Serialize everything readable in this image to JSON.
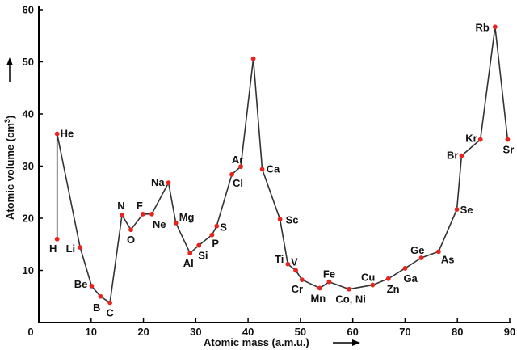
{
  "chart_data": {
    "type": "line",
    "xlabel": "Atomic mass (a.m.u.)",
    "ylabel": "Atomic volume (cm3)",
    "xlim": [
      0,
      90
    ],
    "ylim": [
      0,
      60
    ],
    "xticks": [
      0,
      10,
      20,
      30,
      40,
      50,
      60,
      70,
      80,
      90
    ],
    "yticks": [
      10,
      20,
      30,
      40,
      50,
      60
    ],
    "grid": false,
    "colors": {
      "line": "#333333",
      "marker": "#e8231c",
      "axis": "#000000"
    },
    "points": [
      {
        "x": 3.5,
        "y": 16.0,
        "label": "H"
      },
      {
        "x": 3.5,
        "y": 36.2,
        "label": "He"
      },
      {
        "x": 7.9,
        "y": 14.4,
        "label": "Li"
      },
      {
        "x": 10.1,
        "y": 7.0,
        "label": "Be"
      },
      {
        "x": 11.8,
        "y": 5.0,
        "label": "B"
      },
      {
        "x": 13.6,
        "y": 3.8,
        "label": "C"
      },
      {
        "x": 15.9,
        "y": 20.6,
        "label": "N"
      },
      {
        "x": 17.6,
        "y": 17.8,
        "label": "O"
      },
      {
        "x": 19.9,
        "y": 20.8,
        "label": "F"
      },
      {
        "x": 21.6,
        "y": 20.8,
        "label": "Ne"
      },
      {
        "x": 24.8,
        "y": 26.8,
        "label": "Na"
      },
      {
        "x": 26.2,
        "y": 19.1,
        "label": "Mg"
      },
      {
        "x": 28.9,
        "y": 13.3,
        "label": "Al"
      },
      {
        "x": 30.6,
        "y": 14.8,
        "label": "Si"
      },
      {
        "x": 33.1,
        "y": 16.8,
        "label": "P"
      },
      {
        "x": 34.0,
        "y": 18.5,
        "label": "S"
      },
      {
        "x": 36.9,
        "y": 28.4,
        "label": "Cl"
      },
      {
        "x": 38.6,
        "y": 29.9,
        "label": "Ar"
      },
      {
        "x": 41.0,
        "y": 50.6,
        "label": ""
      },
      {
        "x": 42.7,
        "y": 29.4,
        "label": "Ca"
      },
      {
        "x": 46.1,
        "y": 19.8,
        "label": "Sc"
      },
      {
        "x": 47.6,
        "y": 11.2,
        "label": "Ti"
      },
      {
        "x": 49.1,
        "y": 10.0,
        "label": "V"
      },
      {
        "x": 50.3,
        "y": 8.2,
        "label": "Cr"
      },
      {
        "x": 53.7,
        "y": 6.6,
        "label": "Mn"
      },
      {
        "x": 55.5,
        "y": 7.8,
        "label": "Fe"
      },
      {
        "x": 59.3,
        "y": 6.4,
        "label": "Co, Ni"
      },
      {
        "x": 63.8,
        "y": 7.2,
        "label": "Cu"
      },
      {
        "x": 66.8,
        "y": 8.4,
        "label": "Zn"
      },
      {
        "x": 70.0,
        "y": 10.4,
        "label": "Ga"
      },
      {
        "x": 73.1,
        "y": 12.4,
        "label": "Ge"
      },
      {
        "x": 76.4,
        "y": 13.6,
        "label": "As"
      },
      {
        "x": 79.9,
        "y": 21.7,
        "label": "Se"
      },
      {
        "x": 80.8,
        "y": 32.0,
        "label": "Br"
      },
      {
        "x": 84.4,
        "y": 35.1,
        "label": "Kr"
      },
      {
        "x": 87.2,
        "y": 56.7,
        "label": "Rb"
      },
      {
        "x": 89.6,
        "y": 35.1,
        "label": "Sr"
      }
    ]
  }
}
